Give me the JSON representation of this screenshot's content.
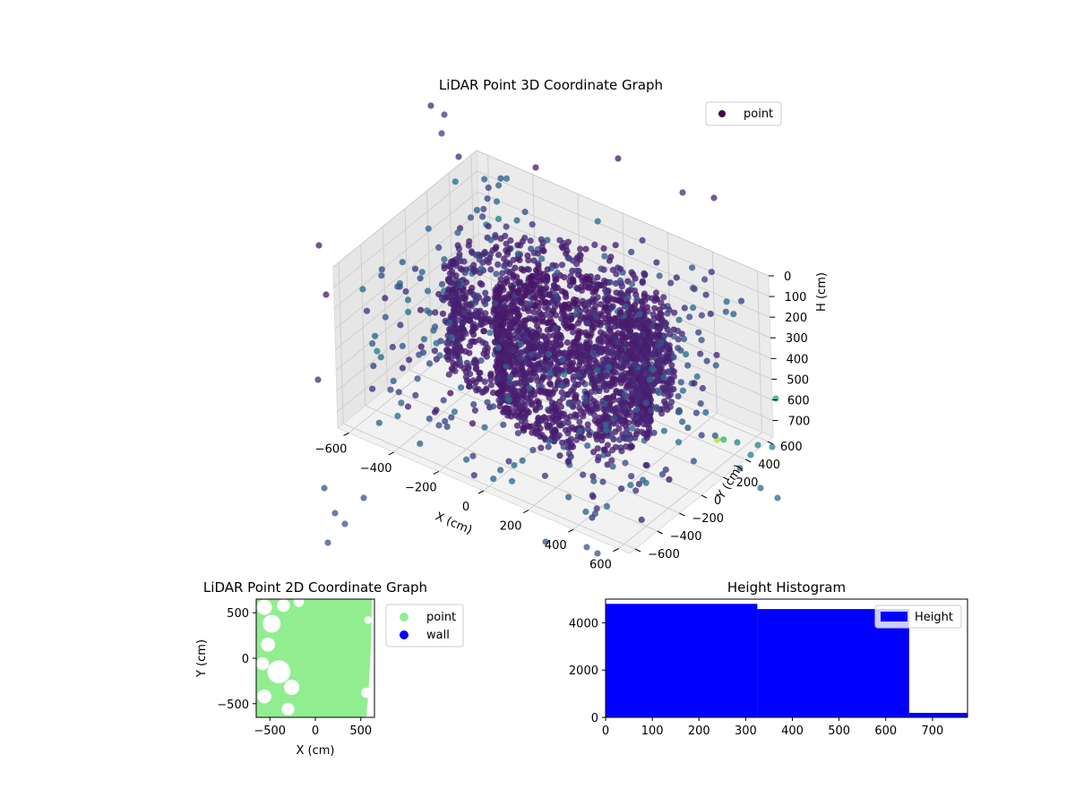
{
  "chart_data": [
    {
      "type": "scatter",
      "title": "LiDAR Point 3D Coordinate Graph",
      "xlabel": "X (cm)",
      "ylabel": "Y (cm)",
      "zlabel": "H (cm)",
      "xlim": [
        -650,
        650
      ],
      "ylim": [
        -650,
        650
      ],
      "zlim": [
        0,
        780
      ],
      "x_ticks": [
        "−600",
        "−400",
        "−200",
        "0",
        "200",
        "400",
        "600"
      ],
      "y_ticks": [
        "−600",
        "−400",
        "−200",
        "0",
        "200",
        "400",
        "600"
      ],
      "z_ticks": [
        "0",
        "100",
        "200",
        "300",
        "400",
        "500",
        "600",
        "700"
      ],
      "z_inverted": true,
      "grid": true,
      "legend": {
        "placement": "top-right",
        "entries": [
          "point"
        ]
      },
      "colormap": "viridis",
      "marker_color": "#440154"
    },
    {
      "type": "scatter",
      "title": "LiDAR Point 2D Coordinate Graph",
      "xlabel": "X (cm)",
      "ylabel": "Y (cm)",
      "xlim": [
        -650,
        650
      ],
      "ylim": [
        -650,
        650
      ],
      "x_ticks": [
        "−500",
        "0",
        "500"
      ],
      "y_ticks": [
        "500",
        "0",
        "−500"
      ],
      "legend": {
        "placement": "outside-right",
        "entries": [
          "point",
          "wall"
        ]
      },
      "series": [
        {
          "name": "point",
          "color": "#90ee90"
        },
        {
          "name": "wall",
          "color": "#0000ff"
        }
      ]
    },
    {
      "type": "bar",
      "title": "Height Histogram",
      "xlim": [
        0,
        775
      ],
      "ylim": [
        0,
        5000
      ],
      "x_ticks": [
        "0",
        "100",
        "200",
        "300",
        "400",
        "500",
        "600",
        "700"
      ],
      "y_ticks": [
        "0",
        "2000",
        "4000"
      ],
      "legend": {
        "placement": "top-right",
        "entries": [
          "Height"
        ]
      },
      "bar_color": "#0000ff",
      "bins": [
        {
          "start": 0,
          "end": 325,
          "count": 4800
        },
        {
          "start": 325,
          "end": 650,
          "count": 4580
        },
        {
          "start": 650,
          "end": 775,
          "count": 190
        }
      ]
    }
  ]
}
